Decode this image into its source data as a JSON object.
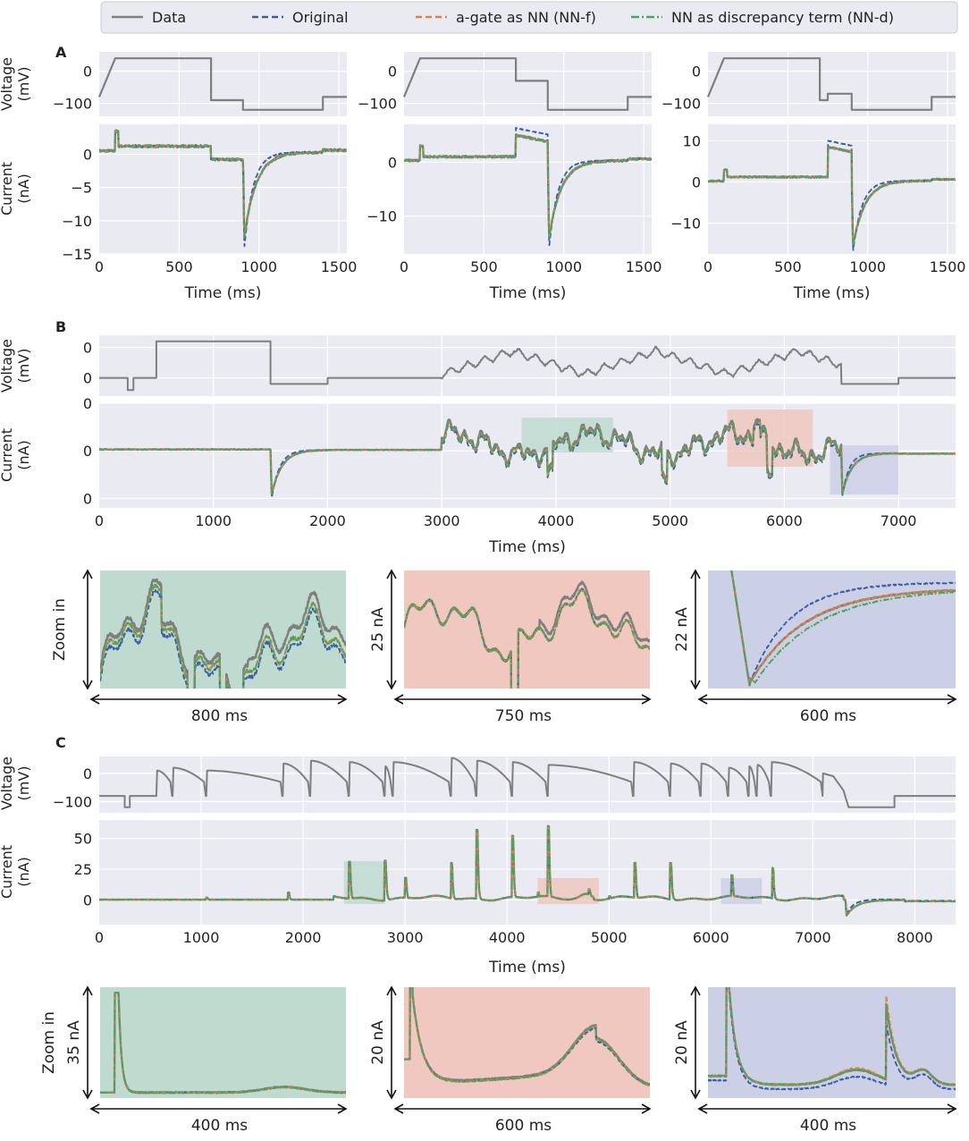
{
  "colors": {
    "data": "#7f7f7f",
    "original": "#3a5da8",
    "nnf": "#e0823e",
    "nnd": "#4aa55a",
    "plot_bg": "#eaeaf2",
    "grid": "#ffffff",
    "zoom_green": "#bfdbd0",
    "zoom_red": "#f0c8c0",
    "zoom_blue": "#ccd0e6"
  },
  "legend": {
    "entries": [
      {
        "label": "Data",
        "series": "data",
        "style": "solid"
      },
      {
        "label": "Original",
        "series": "original",
        "style": "dashed"
      },
      {
        "label": "a-gate as NN (NN-f)",
        "series": "nnf",
        "style": "dashed"
      },
      {
        "label": "NN as discrepancy term (NN-d)",
        "series": "nnd",
        "style": "dashdot"
      }
    ]
  },
  "chart_data": [
    {
      "panel": "A",
      "type": "line",
      "title": "A",
      "voltage_ylabel": "Voltage\n(mV)",
      "current_ylabel": "Current\n(nA)",
      "xlabel": "Time (ms)",
      "xlim": [
        0,
        1550
      ],
      "xticks": [
        0,
        500,
        1000,
        1500
      ],
      "subplots": [
        {
          "voltage": {
            "ylim": [
              -140,
              60
            ],
            "yticks": [
              0,
              -100
            ],
            "steps": [
              [
                0,
                -80
              ],
              [
                100,
                40
              ],
              [
                700,
                40
              ],
              [
                700,
                -90
              ],
              [
                900,
                -90
              ],
              [
                900,
                -120
              ],
              [
                1400,
                -120
              ],
              [
                1400,
                -80
              ],
              [
                1550,
                -80
              ]
            ]
          },
          "current": {
            "ylim": [
              -15,
              4.5
            ],
            "yticks": [
              0,
              -5,
              -10,
              -15
            ],
            "traces": {
              "pre": 0.5,
              "spike_at": 100,
              "spike": 3.5,
              "step1": 1.2,
              "step2_at": 700,
              "step2": -0.8,
              "tail_at": 900,
              "tail_min": -12.5,
              "tail_min_orig": -14.2,
              "final": 0.3,
              "end_at": 1400
            }
          }
        },
        {
          "voltage": {
            "ylim": [
              -140,
              60
            ],
            "yticks": [
              0,
              -100
            ],
            "steps": [
              [
                0,
                -80
              ],
              [
                100,
                40
              ],
              [
                700,
                40
              ],
              [
                700,
                -30
              ],
              [
                900,
                -30
              ],
              [
                900,
                -120
              ],
              [
                1400,
                -120
              ],
              [
                1400,
                -80
              ],
              [
                1550,
                -80
              ]
            ]
          },
          "current": {
            "ylim": [
              -17,
              7
            ],
            "yticks": [
              0,
              -10
            ],
            "traces": {
              "pre": 0.3,
              "spike_at": 100,
              "spike": 3.0,
              "step1": 1.0,
              "step2_at": 700,
              "step2": 5.0,
              "step2_orig": 6.3,
              "tail_at": 900,
              "tail_min": -14.0,
              "tail_min_orig": -15.8,
              "final": 0.3,
              "end_at": 1400
            }
          }
        },
        {
          "voltage": {
            "ylim": [
              -140,
              60
            ],
            "yticks": [
              0,
              -100
            ],
            "steps": [
              [
                0,
                -80
              ],
              [
                100,
                40
              ],
              [
                700,
                40
              ],
              [
                700,
                -90
              ],
              [
                750,
                -90
              ],
              [
                750,
                -70
              ],
              [
                900,
                -70
              ],
              [
                900,
                -120
              ],
              [
                1400,
                -120
              ],
              [
                1400,
                -80
              ],
              [
                1550,
                -80
              ]
            ]
          },
          "current": {
            "ylim": [
              -17.5,
              14
            ],
            "yticks": [
              10,
              0,
              -10
            ],
            "traces": {
              "pre": 0.2,
              "spike_at": 100,
              "spike": 3.0,
              "step1": 1.2,
              "step2_at": 750,
              "step2": 8.5,
              "step2_orig": 10.0,
              "tail_at": 900,
              "tail_min": -15.5,
              "tail_min_orig": -17.0,
              "final": 0.3,
              "end_at": 1400
            }
          }
        }
      ]
    },
    {
      "panel": "B",
      "type": "line",
      "title": "B",
      "voltage_ylabel": "Voltage\n(mV)",
      "current_ylabel": "Current\n(nA)",
      "xlabel": "Time (ms)",
      "xlim": [
        0,
        7500
      ],
      "xticks": [
        0,
        1000,
        2000,
        3000,
        4000,
        5000,
        6000,
        7000
      ],
      "voltage_tick_text": [
        "0",
        "0"
      ],
      "current_tick_text": [
        "0",
        "0",
        "0"
      ],
      "highlights": [
        {
          "color": "zoom_green",
          "x": [
            3700,
            4500
          ]
        },
        {
          "color": "zoom_red",
          "x": [
            5500,
            6250
          ]
        },
        {
          "color": "zoom_blue",
          "x": [
            6400,
            7000
          ]
        }
      ],
      "zooms": [
        {
          "color": "zoom_green",
          "ylabel": "Zoom in",
          "xspan": "800 ms"
        },
        {
          "color": "zoom_red",
          "ylabel": "25 nA",
          "xspan": "750 ms"
        },
        {
          "color": "zoom_blue",
          "ylabel": "22 nA",
          "xspan": "600 ms"
        }
      ]
    },
    {
      "panel": "C",
      "type": "line",
      "title": "C",
      "voltage_ylabel": "Voltage\n(mV)",
      "current_ylabel": "Current\n(nA)",
      "xlabel": "Time (ms)",
      "xlim": [
        0,
        8400
      ],
      "xticks": [
        0,
        1000,
        2000,
        3000,
        4000,
        5000,
        6000,
        7000,
        8000
      ],
      "voltage_yticks": [
        0,
        -100
      ],
      "current_yticks": [
        50,
        25,
        0
      ],
      "current_ylim": [
        -20,
        65
      ],
      "spikes": [
        [
          1050,
          2
        ],
        [
          1850,
          6
        ],
        [
          2450,
          31
        ],
        [
          2800,
          32
        ],
        [
          3000,
          18
        ],
        [
          3450,
          30
        ],
        [
          3700,
          57
        ],
        [
          4050,
          52
        ],
        [
          4300,
          6
        ],
        [
          4400,
          60
        ],
        [
          4800,
          5
        ],
        [
          5000,
          3
        ],
        [
          5250,
          30
        ],
        [
          5600,
          30
        ],
        [
          6200,
          20
        ],
        [
          6600,
          26
        ]
      ],
      "highlights": [
        {
          "color": "zoom_green",
          "x": [
            2400,
            2800
          ]
        },
        {
          "color": "zoom_red",
          "x": [
            4300,
            4900
          ]
        },
        {
          "color": "zoom_blue",
          "x": [
            6100,
            6500
          ]
        }
      ],
      "zooms": [
        {
          "color": "zoom_green",
          "ylabel": "Zoom in",
          "yscale": "35 nA",
          "xspan": "400 ms"
        },
        {
          "color": "zoom_red",
          "ylabel": "20 nA",
          "xspan": "600 ms"
        },
        {
          "color": "zoom_blue",
          "ylabel": "20 nA",
          "xspan": "400 ms"
        }
      ]
    }
  ]
}
